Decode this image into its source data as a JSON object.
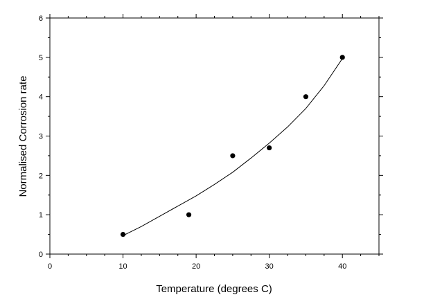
{
  "chart_data": {
    "type": "scatter",
    "title": "",
    "xlabel": "Temperature (degrees C)",
    "ylabel": "Normalised Corrosion rate",
    "xlim": [
      0,
      45
    ],
    "ylim": [
      0,
      6
    ],
    "x_ticks": [
      0,
      10,
      20,
      30,
      40
    ],
    "y_ticks": [
      0,
      1,
      2,
      3,
      4,
      5,
      6
    ],
    "grid": false,
    "legend": "none",
    "series": [
      {
        "kind": "markers",
        "x": [
          10,
          19,
          25,
          30,
          35,
          40
        ],
        "y": [
          0.5,
          1.0,
          2.5,
          2.7,
          4.0,
          5.0
        ]
      },
      {
        "kind": "fit-line",
        "x": [
          10,
          12.5,
          15,
          17.5,
          20,
          22.5,
          25,
          27.5,
          30,
          32.5,
          35,
          37.5,
          40
        ],
        "y": [
          0.47,
          0.7,
          0.96,
          1.22,
          1.48,
          1.77,
          2.08,
          2.44,
          2.82,
          3.23,
          3.7,
          4.28,
          4.97
        ]
      }
    ],
    "colors": {
      "axis": "#000000",
      "marker": "#000000",
      "line": "#000000"
    }
  }
}
